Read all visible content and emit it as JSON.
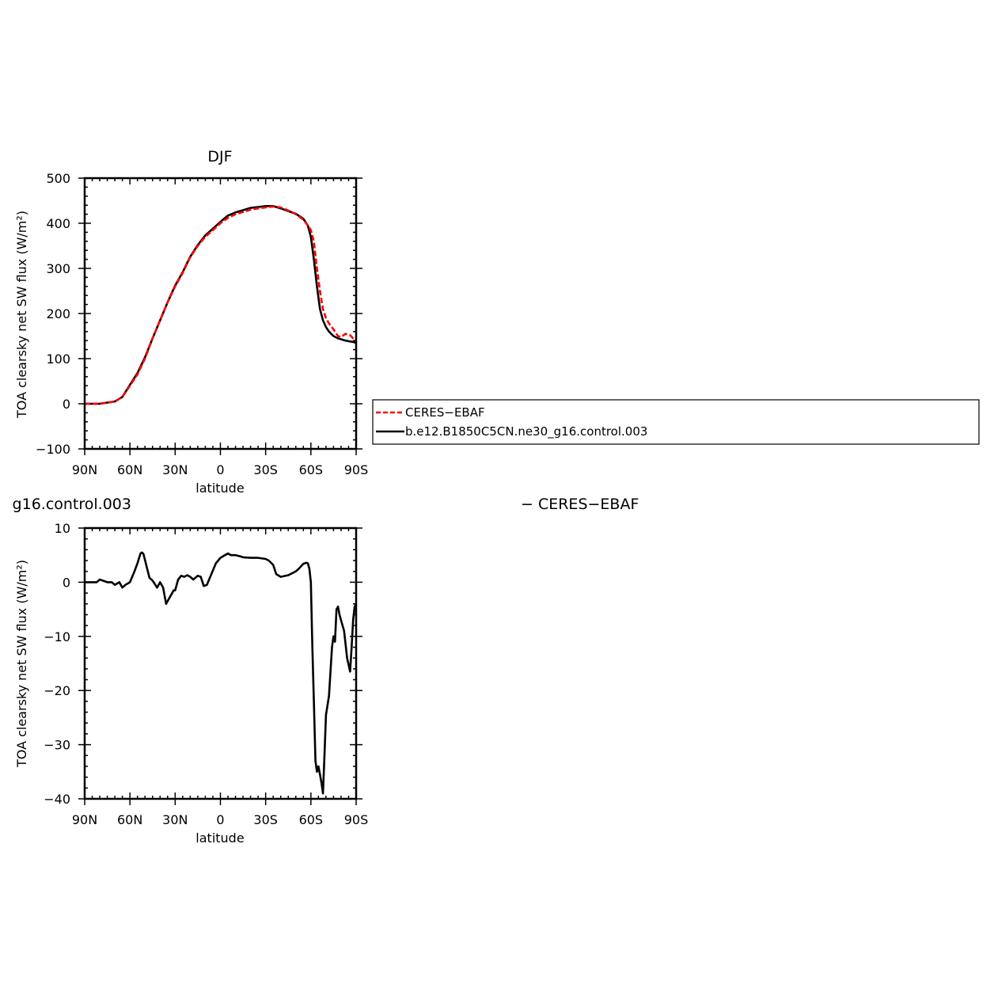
{
  "chart_data": [
    {
      "type": "line",
      "title": "DJF",
      "xlabel": "latitude",
      "ylabel": "TOA clearsky net SW flux (W/m²)",
      "xlim": [
        -90,
        90
      ],
      "ylim": [
        -100,
        500
      ],
      "xticks": [
        -90,
        -60,
        -30,
        0,
        30,
        60,
        90
      ],
      "xtick_labels": [
        "90N",
        "60N",
        "30N",
        "0",
        "30S",
        "60S",
        "90S"
      ],
      "yticks": [
        -100,
        0,
        100,
        200,
        300,
        400,
        500
      ],
      "ytick_labels": [
        "−100",
        "0",
        "100",
        "200",
        "300",
        "400",
        "500"
      ],
      "legend": {
        "placement": "right, outside plot",
        "entries": [
          "CERES−EBAF",
          "b.e12.B1850C5CN.ne30_g16.control.003"
        ]
      },
      "series": [
        {
          "name": "CERES−EBAF",
          "color": "#ff0000",
          "style": "dashed",
          "x": [
            -90,
            -80,
            -70,
            -65,
            -60,
            -55,
            -50,
            -45,
            -40,
            -35,
            -30,
            -25,
            -20,
            -15,
            -10,
            -5,
            0,
            5,
            10,
            15,
            20,
            25,
            30,
            35,
            40,
            45,
            50,
            55,
            58,
            60,
            62,
            64,
            66,
            68,
            70,
            72,
            75,
            78,
            80,
            83,
            86,
            88,
            90
          ],
          "y": [
            0,
            0,
            5,
            15,
            40,
            65,
            100,
            145,
            185,
            225,
            260,
            290,
            325,
            350,
            370,
            385,
            400,
            412,
            420,
            425,
            430,
            433,
            435,
            437,
            435,
            428,
            420,
            408,
            395,
            385,
            360,
            300,
            250,
            210,
            190,
            178,
            165,
            150,
            148,
            155,
            152,
            145,
            140
          ]
        },
        {
          "name": "b.e12.B1850C5CN.ne30_g16.control.003",
          "color": "#000000",
          "style": "solid",
          "x": [
            -90,
            -80,
            -70,
            -65,
            -60,
            -55,
            -50,
            -45,
            -40,
            -35,
            -30,
            -25,
            -20,
            -15,
            -10,
            -5,
            0,
            5,
            10,
            15,
            20,
            25,
            30,
            35,
            40,
            45,
            50,
            55,
            58,
            60,
            62,
            64,
            66,
            68,
            70,
            72,
            75,
            78,
            80,
            83,
            86,
            88,
            90
          ],
          "y": [
            0,
            0,
            5,
            15,
            42,
            68,
            103,
            145,
            185,
            225,
            262,
            292,
            326,
            352,
            373,
            388,
            403,
            417,
            424,
            429,
            434,
            436,
            438,
            438,
            433,
            427,
            421,
            410,
            395,
            370,
            320,
            260,
            210,
            185,
            170,
            160,
            150,
            145,
            143,
            140,
            138,
            137,
            135
          ]
        }
      ]
    },
    {
      "type": "line",
      "title_fragment_left": "g16.control.003",
      "title_fragment_right": "− CERES−EBAF",
      "xlabel": "latitude",
      "ylabel": "TOA clearsky net SW flux (W/m²)",
      "xlim": [
        -90,
        90
      ],
      "ylim": [
        -40,
        10
      ],
      "xticks": [
        -90,
        -60,
        -30,
        0,
        30,
        60,
        90
      ],
      "xtick_labels": [
        "90N",
        "60N",
        "30N",
        "0",
        "30S",
        "60S",
        "90S"
      ],
      "yticks": [
        -40,
        -30,
        -20,
        -10,
        0,
        10
      ],
      "ytick_labels": [
        "−40",
        "−30",
        "−20",
        "−10",
        "0",
        "10"
      ],
      "series": [
        {
          "color": "#000000",
          "style": "solid",
          "x": [
            -90,
            -82,
            -80,
            -75,
            -72,
            -70,
            -67,
            -65,
            -63,
            -60,
            -57,
            -55,
            -53,
            -52,
            -51,
            -49,
            -47,
            -45,
            -42,
            -40,
            -38,
            -37,
            -36,
            -35,
            -33,
            -31,
            -30,
            -28,
            -26,
            -24,
            -22,
            -20,
            -18,
            -15,
            -13,
            -11,
            -9,
            -6,
            -3,
            0,
            3,
            5,
            7,
            10,
            13,
            15,
            20,
            25,
            30,
            32,
            35,
            37,
            40,
            45,
            50,
            52,
            55,
            57,
            58,
            59,
            60,
            61,
            62,
            63,
            64,
            65,
            66,
            67,
            68,
            69,
            70,
            72,
            74,
            75,
            76,
            77,
            78,
            79,
            80,
            82,
            84,
            86,
            87,
            88,
            89,
            90
          ],
          "y": [
            0,
            0,
            0.5,
            0,
            0,
            -0.5,
            0,
            -1,
            -0.5,
            0,
            2,
            3.5,
            5.3,
            5.5,
            5.2,
            3,
            0.8,
            0.3,
            -1,
            0,
            -1,
            -2.5,
            -4,
            -3.5,
            -2.5,
            -1.5,
            -1.5,
            0.5,
            1.2,
            1,
            1.3,
            1,
            0.5,
            1.2,
            1,
            -0.7,
            -0.5,
            1.5,
            3.5,
            4.5,
            5,
            5.3,
            5,
            5,
            4.8,
            4.6,
            4.5,
            4.5,
            4.3,
            4.0,
            3.2,
            1.5,
            1,
            1.3,
            2,
            2.5,
            3.4,
            3.6,
            3.5,
            2.5,
            0,
            -12,
            -22,
            -33,
            -35,
            -34,
            -35.5,
            -37,
            -39,
            -32,
            -24.5,
            -21,
            -12,
            -10,
            -11,
            -5,
            -4.5,
            -6,
            -7,
            -9,
            -14,
            -16.5,
            -12,
            -7,
            -4.5,
            -4
          ]
        }
      ]
    }
  ]
}
